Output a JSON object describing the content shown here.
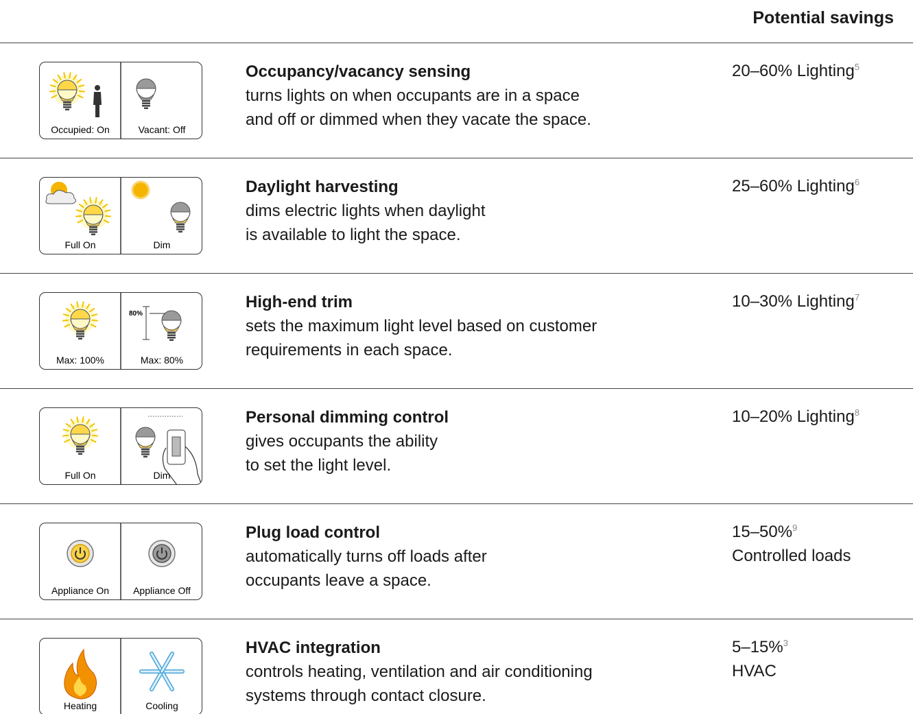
{
  "header": {
    "savings_heading": "Potential savings"
  },
  "rows": [
    {
      "icon": {
        "left_label": "Occupied: On",
        "right_label": "Vacant: Off"
      },
      "title": "Occupancy/vacancy sensing",
      "description": [
        "turns lights on when occupants are in a space",
        "and off or dimmed when they vacate the space."
      ],
      "savings": {
        "lines": [
          "20–60% Lighting"
        ],
        "note": "5"
      }
    },
    {
      "icon": {
        "left_label": "Full On",
        "right_label": "Dim"
      },
      "title": "Daylight harvesting",
      "description": [
        "dims electric lights when daylight",
        "is available to light the space."
      ],
      "savings": {
        "lines": [
          "25–60% Lighting"
        ],
        "note": "6"
      }
    },
    {
      "icon": {
        "left_label": "Max: 100%",
        "right_label": "Max: 80%",
        "marker_label": "80%"
      },
      "title": "High-end trim",
      "description": [
        "sets the maximum light level based on customer",
        "requirements in each space."
      ],
      "savings": {
        "lines": [
          "10–30% Lighting"
        ],
        "note": "7"
      }
    },
    {
      "icon": {
        "left_label": "Full On",
        "right_label": "Dim"
      },
      "title": "Personal dimming control",
      "description": [
        "gives occupants the ability",
        "to set the light level."
      ],
      "savings": {
        "lines": [
          "10–20% Lighting"
        ],
        "note": "8"
      }
    },
    {
      "icon": {
        "left_label": "Appliance On",
        "right_label": "Appliance Off"
      },
      "title": "Plug load control",
      "description": [
        "automatically turns off loads after",
        "occupants leave a space."
      ],
      "savings": {
        "lines": [
          "15–50%",
          "Controlled loads"
        ],
        "note": "9"
      }
    },
    {
      "icon": {
        "left_label": "Heating",
        "right_label": "Cooling"
      },
      "title": "HVAC integration",
      "description": [
        "controls heating, ventilation and air conditioning",
        "systems through contact closure."
      ],
      "savings": {
        "lines": [
          "5–15%",
          "HVAC"
        ],
        "note": "3"
      }
    }
  ]
}
